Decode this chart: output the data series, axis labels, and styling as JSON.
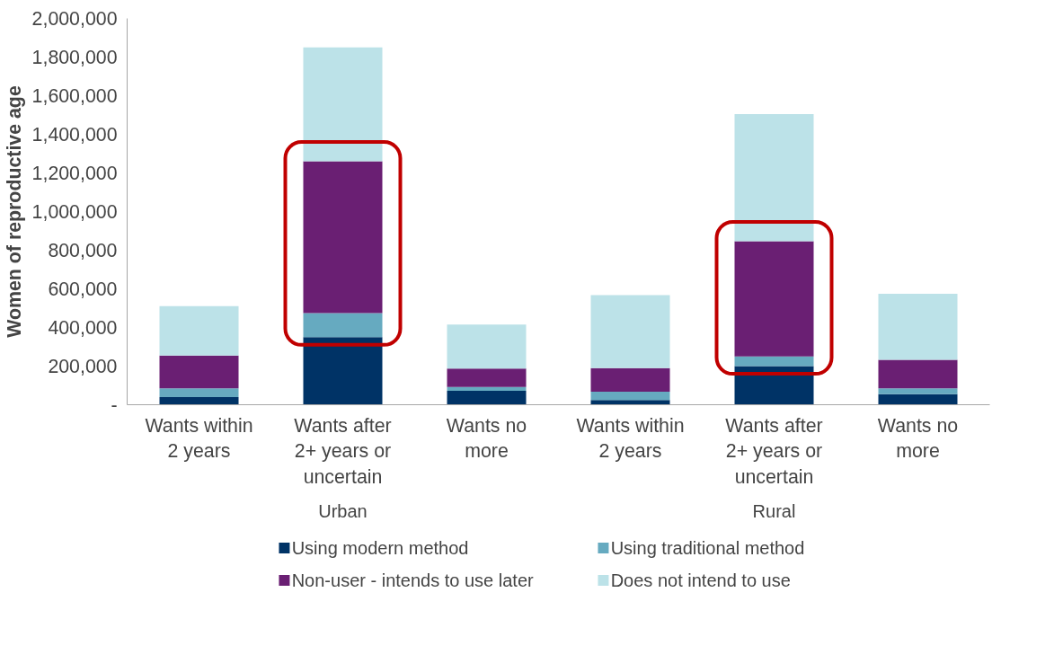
{
  "chart_data": {
    "type": "bar",
    "stacked": true,
    "ylabel": "Women of reproductive age",
    "categories": [
      "Wants within 2 years",
      "Wants after 2+ years or uncertain",
      "Wants no more",
      "Wants within 2 years",
      "Wants after 2+ years or uncertain",
      "Wants no more"
    ],
    "series": [
      {
        "name": "Using modern method",
        "color": "#003366",
        "values": [
          40000,
          350000,
          72000,
          25000,
          200000,
          55000
        ]
      },
      {
        "name": "Using traditional method",
        "color": "#66aac0",
        "values": [
          45000,
          125000,
          20000,
          43000,
          50000,
          30000
        ]
      },
      {
        "name": "Non-user - intends to use later",
        "color": "#6a1f73",
        "values": [
          170000,
          785000,
          95000,
          122000,
          596000,
          148000
        ]
      },
      {
        "name": "Does not intend to use",
        "color": "#bce2e8",
        "values": [
          255000,
          590000,
          228000,
          377000,
          659000,
          342000
        ]
      }
    ],
    "ylim": [
      0,
      2000000
    ],
    "yticks": [
      {
        "value": 0,
        "label": "-"
      },
      {
        "value": 200000,
        "label": "200,000"
      },
      {
        "value": 400000,
        "label": "400,000"
      },
      {
        "value": 600000,
        "label": "600,000"
      },
      {
        "value": 800000,
        "label": "800,000"
      },
      {
        "value": 1000000,
        "label": "1,000,000"
      },
      {
        "value": 1200000,
        "label": "1,200,000"
      },
      {
        "value": 1400000,
        "label": "1,400,000"
      },
      {
        "value": 1600000,
        "label": "1,600,000"
      },
      {
        "value": 1800000,
        "label": "1,800,000"
      },
      {
        "value": 2000000,
        "label": "2,000,000"
      }
    ],
    "annotations": [
      "Urban",
      "Rural"
    ],
    "grid": false,
    "legend": "bottom"
  }
}
